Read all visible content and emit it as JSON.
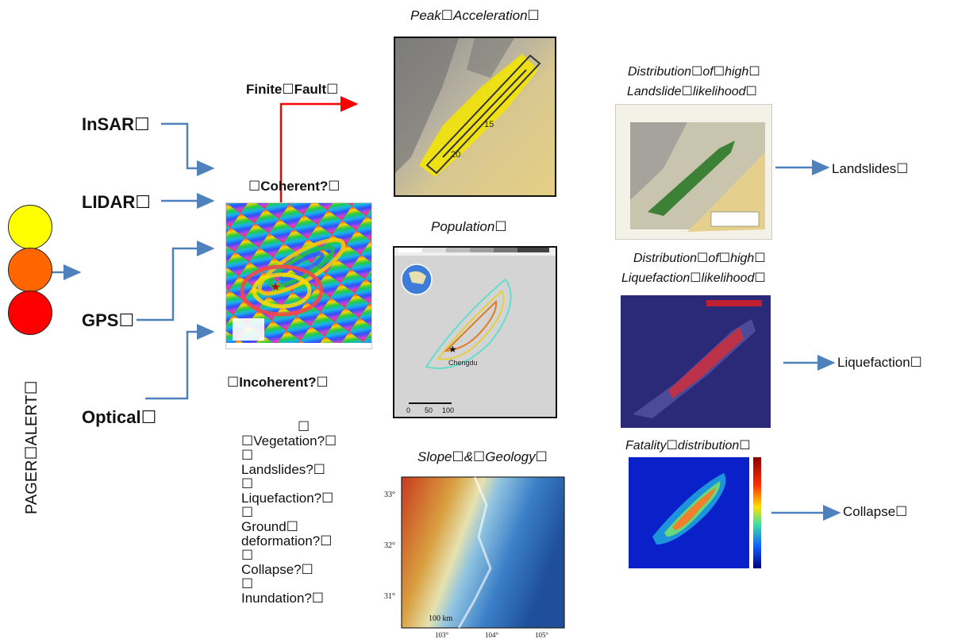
{
  "pager": {
    "label": "PAGER☐ALERT☐",
    "colors": [
      "#ffff00",
      "#ff6600",
      "#ff0000"
    ]
  },
  "sources": [
    "InSAR☐",
    "LIDAR☐",
    "GPS☐",
    "Optical☐"
  ],
  "center": {
    "finite_fault": "Finite☐Fault☐",
    "coherent": "☐Coherent?☐",
    "incoherent": "☐Incoherent?☐",
    "questions": [
      "☐",
      "☐Vegetation?☐",
      "☐",
      "Landslides?☐",
      "☐",
      "Liquefaction?☐",
      "☐",
      "Ground☐",
      "deformation?☐",
      "☐",
      "Collapse?☐",
      "☐",
      "Inundation?☐"
    ]
  },
  "maps": {
    "peak_title": "Peak☐Acceleration☐",
    "population_title": "Population☐",
    "slope_title": "Slope☐&☐Geology☐",
    "population_scale": [
      "0",
      "50",
      "100"
    ],
    "population_city": "Chengdu",
    "slope_lat_ticks": [
      "33°",
      "32°",
      "31°"
    ],
    "slope_lon_ticks": [
      "103°",
      "104°",
      "105°"
    ],
    "slope_scale": "100 km"
  },
  "right": {
    "landslide_title_1": "Distribution☐of☐high☐",
    "landslide_title_2": "Landslide☐likelihood☐",
    "liquefaction_title_1": "Distribution☐of☐high☐",
    "liquefaction_title_2": "Liquefaction☐likelihood☐",
    "fatality_title": "Fatality☐distribution☐",
    "outcomes": [
      "Landslides☐",
      "Liquefaction☐",
      "Collapse☐"
    ]
  }
}
